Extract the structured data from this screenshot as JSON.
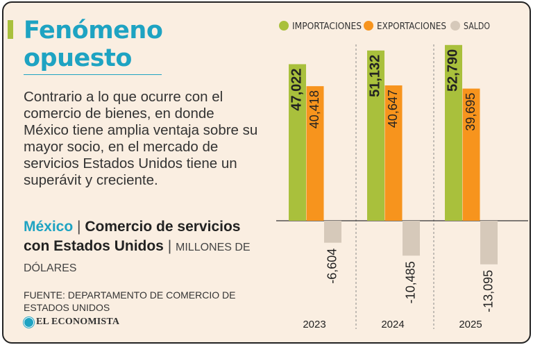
{
  "headline": {
    "line1": "Fenómeno",
    "line2": "opuesto"
  },
  "intro": "Contrario a lo que ocurre con el comercio de bienes, en donde México tiene amplia ventaja sobre su mayor socio, en el mercado de servicios Estados Unidos tiene un superávit y creciente.",
  "chart_heading": {
    "region": "México",
    "separator": "|",
    "title": "Comercio de servicios con Estados Unidos",
    "units": "MILLONES DE DÓLARES"
  },
  "source": "FUENTE: DEPARTAMENTO DE COMERCIO DE ESTADOS UNIDOS",
  "publisher": "EL ECONOMISTA",
  "chart_data": {
    "type": "bar",
    "categories": [
      "2023",
      "2024",
      "2025"
    ],
    "series": [
      {
        "name": "IMPORTACIONES",
        "values": [
          47022,
          51132,
          52790
        ],
        "labels": [
          "47,022",
          "51,132",
          "52,790"
        ],
        "color": "#a9c03c"
      },
      {
        "name": "EXPORTACIONES",
        "values": [
          40418,
          40647,
          39695
        ],
        "labels": [
          "40,418",
          "40,647",
          "39,695"
        ],
        "color": "#f7941d"
      },
      {
        "name": "SALDO",
        "values": [
          -6604,
          -10485,
          -13095
        ],
        "labels": [
          "-6,604",
          "-10,485",
          "-13,095"
        ],
        "color": "#d6c9ba"
      }
    ],
    "legend_position": "top",
    "grid": false
  }
}
